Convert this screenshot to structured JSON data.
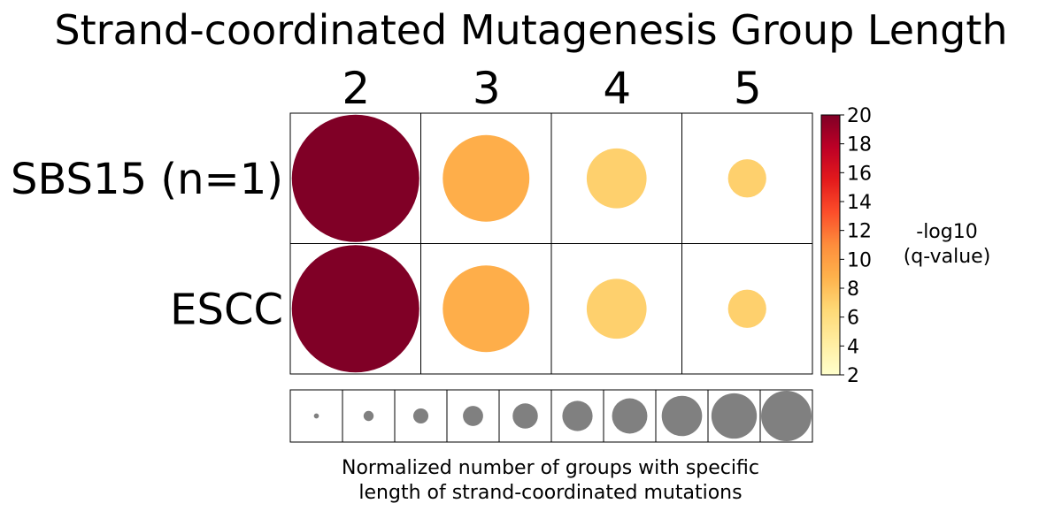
{
  "chart_data": {
    "type": "heatmap",
    "title": "Strand-coordinated Mutagenesis Group Length",
    "columns": [
      "2",
      "3",
      "4",
      "5"
    ],
    "rows": [
      "SBS15 (n=1)",
      "ESCC"
    ],
    "size_values": [
      [
        1.0,
        0.68,
        0.47,
        0.3
      ],
      [
        1.0,
        0.68,
        0.47,
        0.3
      ]
    ],
    "color_values": [
      [
        20,
        9,
        7,
        7
      ],
      [
        20,
        9,
        7,
        7
      ]
    ],
    "colorbar": {
      "label_line1": "-log10",
      "label_line2": "(q-value)",
      "range": [
        2,
        20
      ],
      "ticks": [
        "2",
        "4",
        "6",
        "8",
        "10",
        "12",
        "14",
        "16",
        "18",
        "20"
      ],
      "colormap": [
        "#ffffcc",
        "#ffeda0",
        "#fed976",
        "#feb24c",
        "#fd8d3c",
        "#fc4e2a",
        "#e31a1c",
        "#bd0026",
        "#800026"
      ]
    },
    "size_legend": {
      "label_line1": "Normalized number of groups with specific",
      "label_line2": "length of strand-coordinated mutations",
      "values": [
        0.1,
        0.2,
        0.3,
        0.4,
        0.5,
        0.6,
        0.7,
        0.8,
        0.9,
        1.0
      ],
      "color": "#808080"
    }
  }
}
